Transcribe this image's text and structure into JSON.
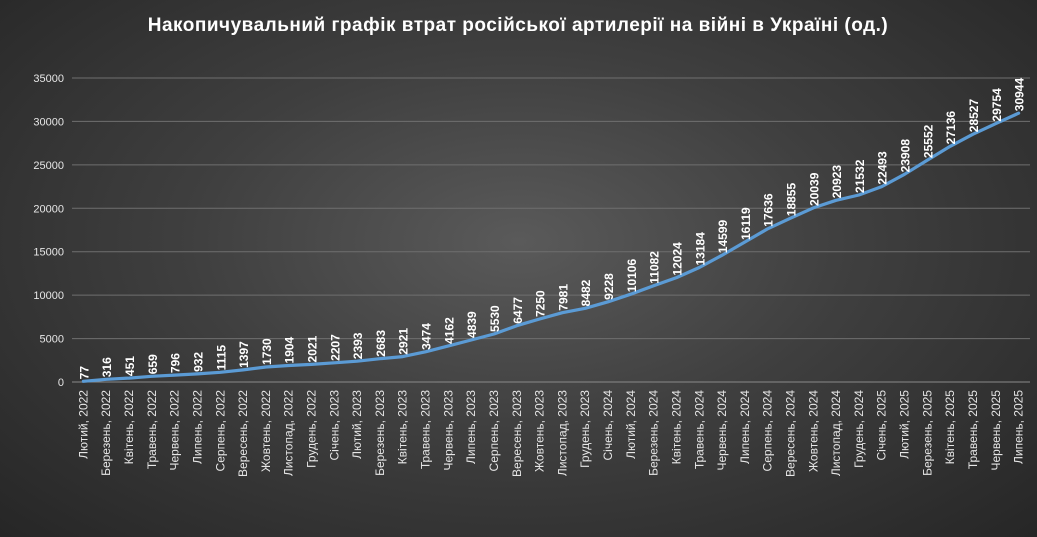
{
  "chart_data": {
    "type": "line",
    "title": "Накопичувальний  графік  втрат  російської  артилерії  на  війні  в  Україні  (од.)",
    "xlabel": "",
    "ylabel": "",
    "ylim": [
      0,
      35000
    ],
    "yticks": [
      "0",
      "5000",
      "10000",
      "15000",
      "20000",
      "25000",
      "30000",
      "35000"
    ],
    "grid": true,
    "legend": "none",
    "series_color": "#5b9bd5",
    "categories": [
      "Лютий, 2022",
      "Березень, 2022",
      "Квітень, 2022",
      "Травень, 2022",
      "Червень, 2022",
      "Липень, 2022",
      "Серпень, 2022",
      "Вересень, 2022",
      "Жовтень, 2022",
      "Листопад, 2022",
      "Грудень, 2022",
      "Січень, 2023",
      "Лютий, 2023",
      "Березень, 2023",
      "Квітень, 2023",
      "Травень, 2023",
      "Червень, 2023",
      "Липень, 2023",
      "Серпень, 2023",
      "Вересень, 2023",
      "Жовтень, 2023",
      "Листопад, 2023",
      "Грудень, 2023",
      "Січень, 2024",
      "Лютий, 2024",
      "Березень, 2024",
      "Квітень, 2024",
      "Травень, 2024",
      "Червень, 2024",
      "Липень, 2024",
      "Серпень, 2024",
      "Вересень, 2024",
      "Жовтень, 2024",
      "Листопад, 2024",
      "Грудень, 2024",
      "Січень, 2025",
      "Лютий, 2025",
      "Березень, 2025",
      "Квітень, 2025",
      "Травень, 2025",
      "Червень, 2025",
      "Липень, 2025"
    ],
    "values": [
      77,
      316,
      451,
      659,
      796,
      932,
      1115,
      1397,
      1730,
      1904,
      2021,
      2207,
      2393,
      2683,
      2921,
      3474,
      4162,
      4839,
      5530,
      6477,
      7250,
      7981,
      8482,
      9228,
      10106,
      11082,
      12024,
      13184,
      14599,
      16119,
      17636,
      18855,
      20039,
      20923,
      21532,
      22493,
      23908,
      25552,
      27136,
      28527,
      29754,
      30944
    ]
  }
}
